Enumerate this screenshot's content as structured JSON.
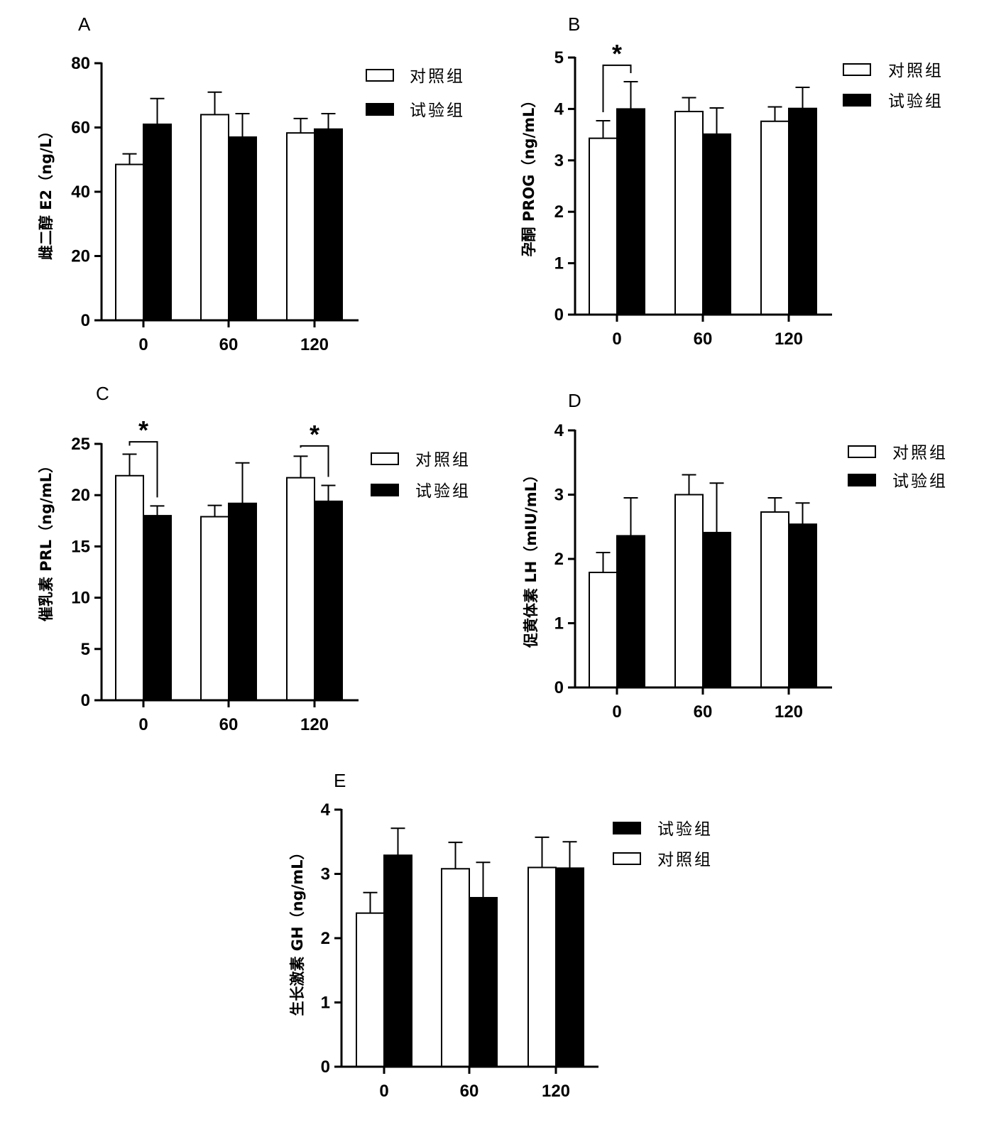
{
  "series_colors": {
    "对照组": "#ffffff",
    "试验组": "#000000"
  },
  "chart_data": [
    {
      "type": "bar",
      "panel": "A",
      "ylabel": "雌二醇 E2（ng/L）",
      "ylim": [
        0,
        80
      ],
      "yticks": [
        0,
        20,
        40,
        60,
        80
      ],
      "categories": [
        "0",
        "60",
        "120"
      ],
      "series": [
        {
          "name": "对照组",
          "values": [
            48.5,
            64,
            58.3
          ],
          "errors": [
            3.3,
            7,
            4.5
          ]
        },
        {
          "name": "试验组",
          "values": [
            61,
            57,
            59.5
          ],
          "errors": [
            8,
            7.3,
            4.8
          ]
        }
      ],
      "legend": [
        {
          "label": "对照组",
          "series": "对照组"
        },
        {
          "label": "试验组",
          "series": "试验组"
        }
      ],
      "legend_placement": "top-right",
      "significance": []
    },
    {
      "type": "bar",
      "panel": "B",
      "ylabel": "孕酮 PROG（ng/mL）",
      "ylim": [
        0,
        5
      ],
      "yticks": [
        0,
        1,
        2,
        3,
        4,
        5
      ],
      "categories": [
        "0",
        "60",
        "120"
      ],
      "series": [
        {
          "name": "对照组",
          "values": [
            3.43,
            3.95,
            3.76
          ],
          "errors": [
            0.34,
            0.27,
            0.28
          ]
        },
        {
          "name": "试验组",
          "values": [
            4.0,
            3.51,
            4.01
          ],
          "errors": [
            0.53,
            0.51,
            0.41
          ]
        }
      ],
      "legend": [
        {
          "label": "对照组",
          "series": "对照组"
        },
        {
          "label": "试验组",
          "series": "试验组"
        }
      ],
      "legend_placement": "top-right",
      "significance": [
        {
          "category": 0,
          "label": "*",
          "bracket_y": 4.85
        }
      ]
    },
    {
      "type": "bar",
      "panel": "C",
      "ylabel": "催乳素 PRL（ng/mL）",
      "ylim": [
        0,
        25
      ],
      "yticks": [
        0,
        5,
        10,
        15,
        20,
        25
      ],
      "categories": [
        "0",
        "60",
        "120"
      ],
      "series": [
        {
          "name": "对照组",
          "values": [
            21.9,
            17.9,
            21.7
          ],
          "errors": [
            2.1,
            1.1,
            2.1
          ]
        },
        {
          "name": "试验组",
          "values": [
            18.0,
            19.2,
            19.4
          ],
          "errors": [
            0.95,
            3.95,
            1.55
          ]
        }
      ],
      "legend": [
        {
          "label": "对照组",
          "series": "对照组"
        },
        {
          "label": "试验组",
          "series": "试验组"
        }
      ],
      "legend_placement": "top-right",
      "significance": [
        {
          "category": 0,
          "label": "*",
          "bracket_y": 25.2
        },
        {
          "category": 2,
          "label": "*",
          "bracket_y": 24.8
        }
      ]
    },
    {
      "type": "bar",
      "panel": "D",
      "ylabel": "促黄体素 LH（mIU/mL）",
      "ylim": [
        0,
        4
      ],
      "yticks": [
        0,
        1,
        2,
        3,
        4
      ],
      "categories": [
        "0",
        "60",
        "120"
      ],
      "series": [
        {
          "name": "对照组",
          "values": [
            1.79,
            3.0,
            2.73
          ],
          "errors": [
            0.31,
            0.31,
            0.22
          ]
        },
        {
          "name": "试验组",
          "values": [
            2.36,
            2.41,
            2.54
          ],
          "errors": [
            0.59,
            0.77,
            0.33
          ]
        }
      ],
      "legend": [
        {
          "label": "对照组",
          "series": "对照组"
        },
        {
          "label": "试验组",
          "series": "试验组"
        }
      ],
      "legend_placement": "top-right",
      "significance": []
    },
    {
      "type": "bar",
      "panel": "E",
      "ylabel": "生长激素 GH（ng/mL）",
      "ylim": [
        0,
        4
      ],
      "yticks": [
        0,
        1,
        2,
        3,
        4
      ],
      "categories": [
        "0",
        "60",
        "120"
      ],
      "series": [
        {
          "name": "对照组",
          "values": [
            2.39,
            3.08,
            3.1
          ],
          "errors": [
            0.32,
            0.41,
            0.47
          ]
        },
        {
          "name": "试验组",
          "values": [
            3.29,
            2.63,
            3.09
          ],
          "errors": [
            0.42,
            0.55,
            0.41
          ]
        }
      ],
      "legend": [
        {
          "label": "试验组",
          "series": "试验组"
        },
        {
          "label": "对照组",
          "series": "对照组"
        }
      ],
      "legend_placement": "top-right",
      "significance": []
    }
  ]
}
